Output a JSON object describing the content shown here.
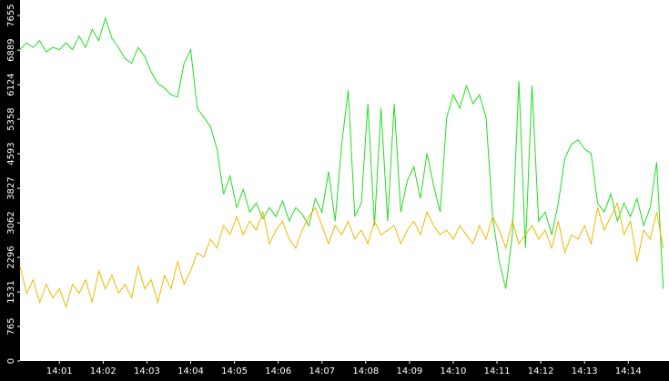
{
  "chart_data": {
    "type": "line",
    "x": [
      0.1,
      0.25,
      0.4,
      0.55,
      0.7,
      0.85,
      1.0,
      1.15,
      1.3,
      1.45,
      1.6,
      1.75,
      1.9,
      2.05,
      2.2,
      2.35,
      2.5,
      2.65,
      2.8,
      2.95,
      3.1,
      3.25,
      3.4,
      3.55,
      3.7,
      3.85,
      4.0,
      4.15,
      4.3,
      4.45,
      4.6,
      4.75,
      4.9,
      5.05,
      5.2,
      5.35,
      5.5,
      5.65,
      5.8,
      5.95,
      6.1,
      6.25,
      6.4,
      6.55,
      6.7,
      6.85,
      7.0,
      7.15,
      7.3,
      7.45,
      7.6,
      7.75,
      7.9,
      8.05,
      8.2,
      8.35,
      8.5,
      8.65,
      8.8,
      8.95,
      9.1,
      9.25,
      9.4,
      9.55,
      9.7,
      9.85,
      10.0,
      10.15,
      10.3,
      10.45,
      10.6,
      10.75,
      10.9,
      11.05,
      11.2,
      11.35,
      11.5,
      11.65,
      11.8,
      11.95,
      12.1,
      12.25,
      12.4,
      12.55,
      12.7,
      12.85,
      13.0,
      13.15,
      13.3,
      13.45,
      13.6,
      13.75,
      13.9,
      14.05,
      14.2,
      14.35,
      14.5,
      14.65,
      14.8
    ],
    "series": [
      {
        "color": "#22dd22",
        "values": [
          6900,
          7050,
          6950,
          7100,
          6850,
          6950,
          6900,
          7050,
          6900,
          7200,
          6950,
          7350,
          7100,
          7600,
          7150,
          6950,
          6700,
          6600,
          6950,
          6750,
          6400,
          6150,
          6050,
          5900,
          5850,
          6600,
          6900,
          5600,
          5400,
          5200,
          4700,
          3700,
          4100,
          3400,
          3800,
          3300,
          3500,
          3150,
          3400,
          3200,
          3550,
          3100,
          3400,
          3250,
          3000,
          3600,
          3300,
          4200,
          3100,
          4800,
          6000,
          3200,
          3500,
          5700,
          3000,
          5600,
          3100,
          5700,
          3300,
          4000,
          4300,
          3600,
          4600,
          3900,
          3300,
          5400,
          5900,
          5600,
          6100,
          5700,
          5900,
          5400,
          3200,
          2200,
          1600,
          2800,
          6200,
          2500,
          6100,
          3100,
          3300,
          2800,
          3500,
          4500,
          4800,
          4900,
          4700,
          4600,
          3500,
          3300,
          3700,
          3100,
          3500,
          3200,
          3600,
          3000,
          3400,
          4400,
          1600
        ]
      },
      {
        "color": "#f0b800",
        "values": [
          2100,
          1500,
          1800,
          1300,
          1700,
          1400,
          1600,
          1200,
          1700,
          1500,
          1800,
          1300,
          2000,
          1600,
          1900,
          1500,
          1700,
          1400,
          2100,
          1600,
          1800,
          1300,
          1900,
          1600,
          2200,
          1700,
          2000,
          2400,
          2300,
          2700,
          2500,
          3000,
          2800,
          3200,
          2800,
          3100,
          2900,
          3300,
          2600,
          2900,
          3100,
          2700,
          2500,
          2900,
          3200,
          3400,
          3000,
          2600,
          3000,
          2800,
          3100,
          2700,
          2900,
          2600,
          3100,
          2800,
          2900,
          3000,
          2600,
          2900,
          3100,
          2800,
          3300,
          3000,
          2800,
          2900,
          2700,
          3000,
          2800,
          2600,
          3000,
          2700,
          3200,
          2900,
          2500,
          3100,
          2600,
          2800,
          3000,
          2700,
          2900,
          2500,
          3100,
          2400,
          2800,
          2700,
          3000,
          2600,
          3400,
          2900,
          3200,
          3500,
          2800,
          3100,
          2200,
          2900,
          2700,
          3300,
          2500
        ]
      }
    ],
    "xlim": [
      0.1,
      14.93
    ],
    "xticks": [
      {
        "value": 1,
        "label": "14:01"
      },
      {
        "value": 2,
        "label": "14:02"
      },
      {
        "value": 3,
        "label": "14:03"
      },
      {
        "value": 4,
        "label": "14:04"
      },
      {
        "value": 5,
        "label": "14:05"
      },
      {
        "value": 6,
        "label": "14:06"
      },
      {
        "value": 7,
        "label": "14:07"
      },
      {
        "value": 8,
        "label": "14:08"
      },
      {
        "value": 9,
        "label": "14:09"
      },
      {
        "value": 10,
        "label": "14:10"
      },
      {
        "value": 11,
        "label": "14:11"
      },
      {
        "value": 12,
        "label": "14:12"
      },
      {
        "value": 13,
        "label": "14:13"
      },
      {
        "value": 14,
        "label": "14:14"
      }
    ],
    "ylim": [
      0,
      8000
    ],
    "yticks": [
      0,
      765,
      1531,
      2296,
      3062,
      3827,
      4593,
      5358,
      6124,
      6889,
      7655
    ]
  }
}
